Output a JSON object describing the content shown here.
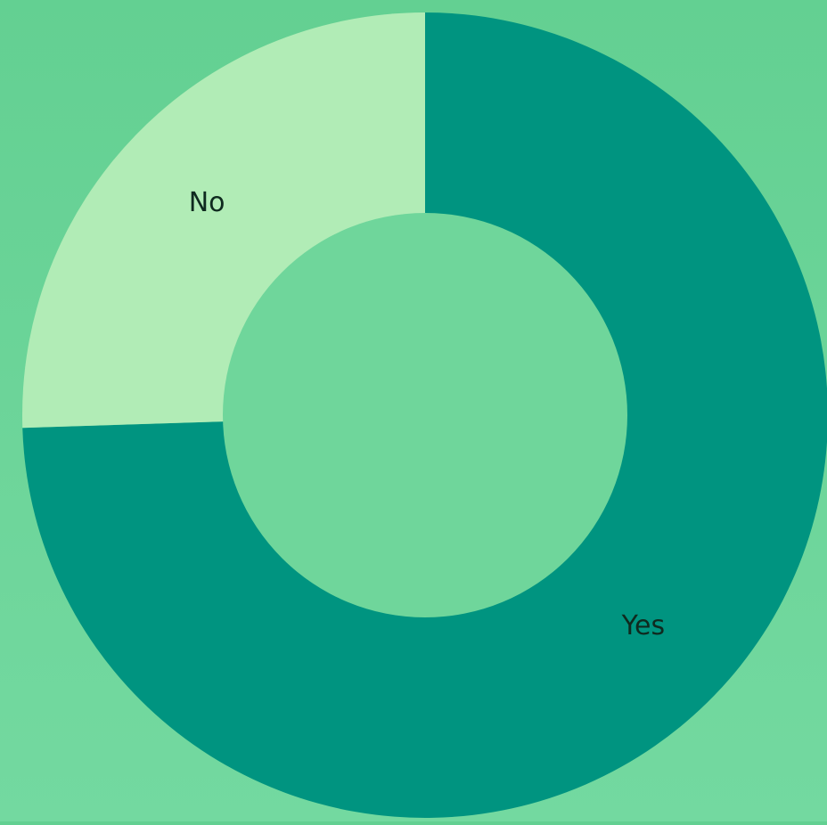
{
  "chart_data": {
    "type": "pie",
    "variant": "donut",
    "categories": [
      "Yes",
      "No"
    ],
    "values": [
      74.5,
      25.5
    ],
    "unit": "%",
    "title": "",
    "legend": "none",
    "colors": {
      "Yes": "#009480",
      "No": "#b1ecb6"
    }
  },
  "colors": {
    "background": "#68d396",
    "center": "#6fd69b"
  }
}
